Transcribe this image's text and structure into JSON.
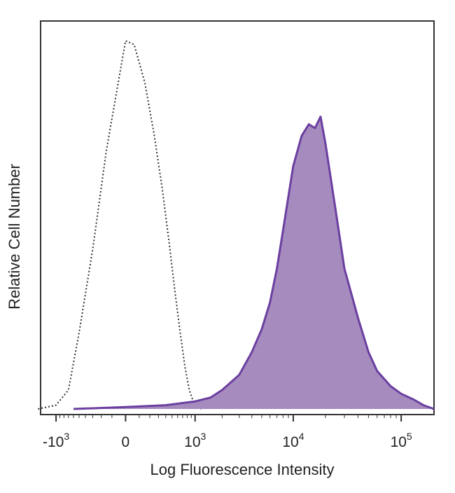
{
  "chart_data": {
    "type": "area",
    "title": "",
    "xlabel": "Log Fluorescence Intensity",
    "ylabel": "Relative Cell Number",
    "x_scale": "biexponential",
    "xlim": [
      -1500,
      200000
    ],
    "ylim": [
      0,
      1.0
    ],
    "x_ticks": [
      {
        "value": -1000,
        "base": "-10",
        "exp": "3"
      },
      {
        "value": 0,
        "base": "0",
        "exp": ""
      },
      {
        "value": 1000,
        "base": "10",
        "exp": "3"
      },
      {
        "value": 10000,
        "base": "10",
        "exp": "4"
      },
      {
        "value": 100000,
        "base": "10",
        "exp": "5"
      }
    ],
    "grid": false,
    "legend": "none",
    "series": [
      {
        "style": "dotted-outline",
        "color": "#333333",
        "x": [
          -1600,
          -1000,
          -700,
          -500,
          -300,
          -150,
          -50,
          0,
          60,
          150,
          250,
          350,
          450,
          550,
          650,
          750,
          850,
          950,
          1050,
          1200
        ],
        "y": [
          0.0,
          0.01,
          0.05,
          0.2,
          0.42,
          0.68,
          0.86,
          0.97,
          0.96,
          0.86,
          0.72,
          0.58,
          0.44,
          0.31,
          0.2,
          0.11,
          0.05,
          0.02,
          0.005,
          0.0
        ]
      },
      {
        "style": "filled",
        "color": "#6b3fa0",
        "fill": "#a68bbf",
        "x": [
          -600,
          0,
          400,
          1000,
          1500,
          2000,
          3000,
          4000,
          5000,
          6000,
          7000,
          8000,
          9000,
          10000,
          12000,
          14000,
          16000,
          18000,
          20000,
          25000,
          30000,
          40000,
          50000,
          60000,
          80000,
          100000,
          130000,
          160000,
          200000
        ],
        "y": [
          0.0,
          0.005,
          0.01,
          0.02,
          0.03,
          0.05,
          0.09,
          0.15,
          0.21,
          0.28,
          0.37,
          0.47,
          0.56,
          0.64,
          0.72,
          0.75,
          0.74,
          0.77,
          0.7,
          0.52,
          0.37,
          0.24,
          0.15,
          0.1,
          0.06,
          0.04,
          0.025,
          0.01,
          0.0
        ]
      }
    ]
  }
}
